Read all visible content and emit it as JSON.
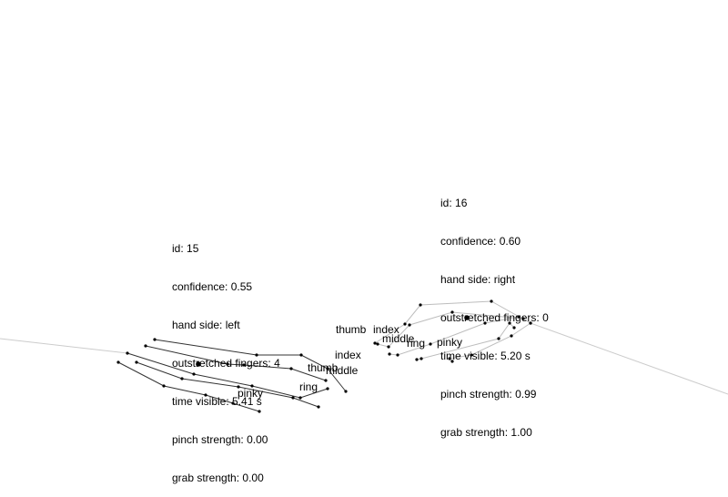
{
  "colors": {
    "background": "#ffffff",
    "ink": "#000000",
    "arm_line": "#cccccc",
    "finger_line_left": "#333333",
    "finger_line_right": "#bdbdbd"
  },
  "hands": [
    {
      "lines": [
        {
          "label": "id",
          "value": "15"
        },
        {
          "label": "confidence",
          "value": "0.55"
        },
        {
          "label": "hand side",
          "value": "left"
        },
        {
          "label": "outstretched fingers",
          "value": "4"
        },
        {
          "label": "time visible",
          "value": "5.41 s"
        },
        {
          "label": "pinch strength",
          "value": "0.00"
        },
        {
          "label": "grab strength",
          "value": "0.00"
        }
      ],
      "finger_labels": {
        "thumb": "thumb",
        "index": "index",
        "middle": "middle",
        "ring": "ring",
        "pinky": "pinky"
      }
    },
    {
      "lines": [
        {
          "label": "id",
          "value": "16"
        },
        {
          "label": "confidence",
          "value": "0.60"
        },
        {
          "label": "hand side",
          "value": "right"
        },
        {
          "label": "outstretched fingers",
          "value": "0"
        },
        {
          "label": "time visible",
          "value": "5.20 s"
        },
        {
          "label": "pinch strength",
          "value": "0.99"
        },
        {
          "label": "grab strength",
          "value": "1.00"
        }
      ],
      "finger_labels": {
        "thumb": "thumb",
        "index": "index",
        "middle": "middle",
        "ring": "ring",
        "pinky": "pinky"
      }
    }
  ]
}
